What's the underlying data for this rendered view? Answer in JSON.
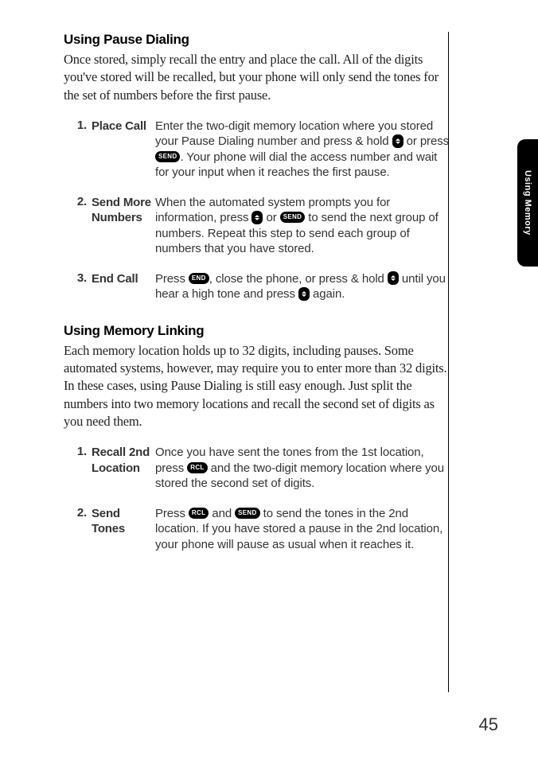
{
  "sideTab": "Using Memory",
  "pageNumber": "45",
  "section1": {
    "heading": "Using Pause Dialing",
    "intro": "Once stored, simply recall the entry and place the call. All of the digits you've stored will be recalled, but your phone will only send the tones for the set of numbers before the first pause.",
    "steps": [
      {
        "num": "1.",
        "label": "Place Call",
        "parts": [
          {
            "t": "text",
            "v": "Enter the two-digit memory location where you stored your Pause Dialing number and press & hold "
          },
          {
            "t": "updown"
          },
          {
            "t": "text",
            "v": " or press "
          },
          {
            "t": "key",
            "v": "SEND"
          },
          {
            "t": "text",
            "v": ". Your phone will dial the access number and wait for your input when it reaches the first pause."
          }
        ]
      },
      {
        "num": "2.",
        "label": "Send More Numbers",
        "parts": [
          {
            "t": "text",
            "v": "When the automated system prompts you for information, press "
          },
          {
            "t": "updown"
          },
          {
            "t": "text",
            "v": " or "
          },
          {
            "t": "key",
            "v": "SEND"
          },
          {
            "t": "text",
            "v": " to send the next group of numbers. Repeat this step to send each group of numbers that you have stored."
          }
        ]
      },
      {
        "num": "3.",
        "label": "End Call",
        "parts": [
          {
            "t": "text",
            "v": "Press "
          },
          {
            "t": "key",
            "v": "END"
          },
          {
            "t": "text",
            "v": ", close the phone, or press & hold "
          },
          {
            "t": "updown"
          },
          {
            "t": "text",
            "v": " until you hear a high tone and press "
          },
          {
            "t": "updown"
          },
          {
            "t": "text",
            "v": " again."
          }
        ]
      }
    ]
  },
  "section2": {
    "heading": "Using Memory Linking",
    "intro": "Each memory location holds up to 32 digits, including pauses. Some automated systems, however, may require you to enter more than 32 digits. In these cases, using Pause Dialing is still easy enough. Just split the numbers into two memory locations and recall the second set of digits as you need them.",
    "steps": [
      {
        "num": "1.",
        "label": "Recall 2nd Location",
        "parts": [
          {
            "t": "text",
            "v": "Once you have sent the tones from the 1st location, press "
          },
          {
            "t": "key",
            "v": "RCL"
          },
          {
            "t": "text",
            "v": " and the two-digit memory location where you stored the second set of digits."
          }
        ]
      },
      {
        "num": "2.",
        "label": "Send Tones",
        "parts": [
          {
            "t": "text",
            "v": "Press "
          },
          {
            "t": "key",
            "v": "RCL"
          },
          {
            "t": "text",
            "v": " and "
          },
          {
            "t": "key",
            "v": "SEND"
          },
          {
            "t": "text",
            "v": " to send the tones in the 2nd location. If you have stored a pause in the 2nd location, your phone will pause as usual when it reaches it."
          }
        ]
      }
    ]
  }
}
